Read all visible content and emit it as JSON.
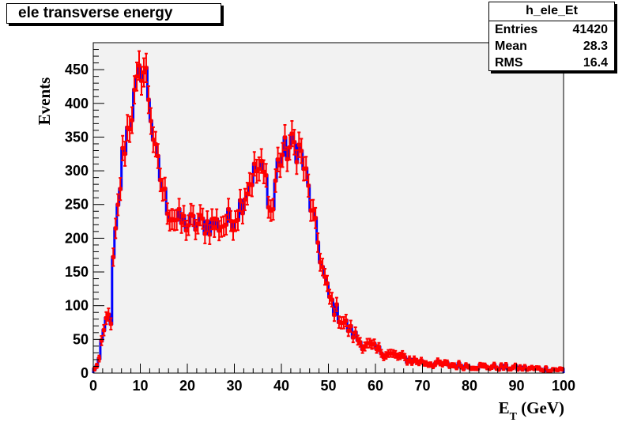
{
  "title": "ele transverse energy",
  "stats": {
    "name": "h_ele_Et",
    "rows": [
      {
        "label": "Entries",
        "value": "41420"
      },
      {
        "label": "Mean",
        "value": "28.3"
      },
      {
        "label": "RMS",
        "value": "16.4"
      }
    ]
  },
  "chart_data": {
    "type": "bar",
    "title": "ele transverse energy",
    "xlabel": "E_T (GeV)",
    "ylabel": "Events",
    "xlim": [
      0,
      100
    ],
    "ylim": [
      0,
      490
    ],
    "x_ticks": [
      0,
      10,
      20,
      30,
      40,
      50,
      60,
      70,
      80,
      90,
      100
    ],
    "y_ticks": [
      0,
      50,
      100,
      150,
      200,
      250,
      300,
      350,
      400,
      450
    ],
    "grid": false,
    "legend": "top-right",
    "colors": {
      "frame": "#f2f2f2",
      "histogram": "#0000ff",
      "markers": "#ff0000"
    },
    "bin_width": 0.5,
    "profile": [
      [
        0.25,
        5
      ],
      [
        1.25,
        20
      ],
      [
        2.25,
        60
      ],
      [
        3.25,
        95
      ],
      [
        3.75,
        65
      ],
      [
        4.25,
        165
      ],
      [
        5.25,
        240
      ],
      [
        6.25,
        320
      ],
      [
        7.25,
        360
      ],
      [
        8.25,
        390
      ],
      [
        9.25,
        420
      ],
      [
        10.25,
        455
      ],
      [
        11.25,
        440
      ],
      [
        12.25,
        385
      ],
      [
        13.25,
        320
      ],
      [
        14.25,
        290
      ],
      [
        15.25,
        260
      ],
      [
        16.25,
        240
      ],
      [
        18,
        225
      ],
      [
        20,
        222
      ],
      [
        22,
        220
      ],
      [
        24,
        222
      ],
      [
        26,
        220
      ],
      [
        28,
        222
      ],
      [
        30,
        232
      ],
      [
        31,
        245
      ],
      [
        32,
        262
      ],
      [
        33,
        280
      ],
      [
        34,
        295
      ],
      [
        35,
        302
      ],
      [
        36,
        298
      ],
      [
        37,
        280
      ],
      [
        38,
        225
      ],
      [
        39,
        305
      ],
      [
        40,
        322
      ],
      [
        41,
        330
      ],
      [
        42,
        335
      ],
      [
        43,
        338
      ],
      [
        44,
        330
      ],
      [
        45,
        300
      ],
      [
        46,
        260
      ],
      [
        47,
        220
      ],
      [
        48,
        185
      ],
      [
        49,
        145
      ],
      [
        50,
        115
      ],
      [
        51,
        100
      ],
      [
        52,
        88
      ],
      [
        53,
        78
      ],
      [
        55,
        60
      ],
      [
        57,
        45
      ],
      [
        60,
        35
      ],
      [
        63,
        28
      ],
      [
        67,
        20
      ],
      [
        72,
        14
      ],
      [
        78,
        11
      ],
      [
        85,
        9
      ],
      [
        92,
        7
      ],
      [
        100,
        5
      ]
    ]
  }
}
